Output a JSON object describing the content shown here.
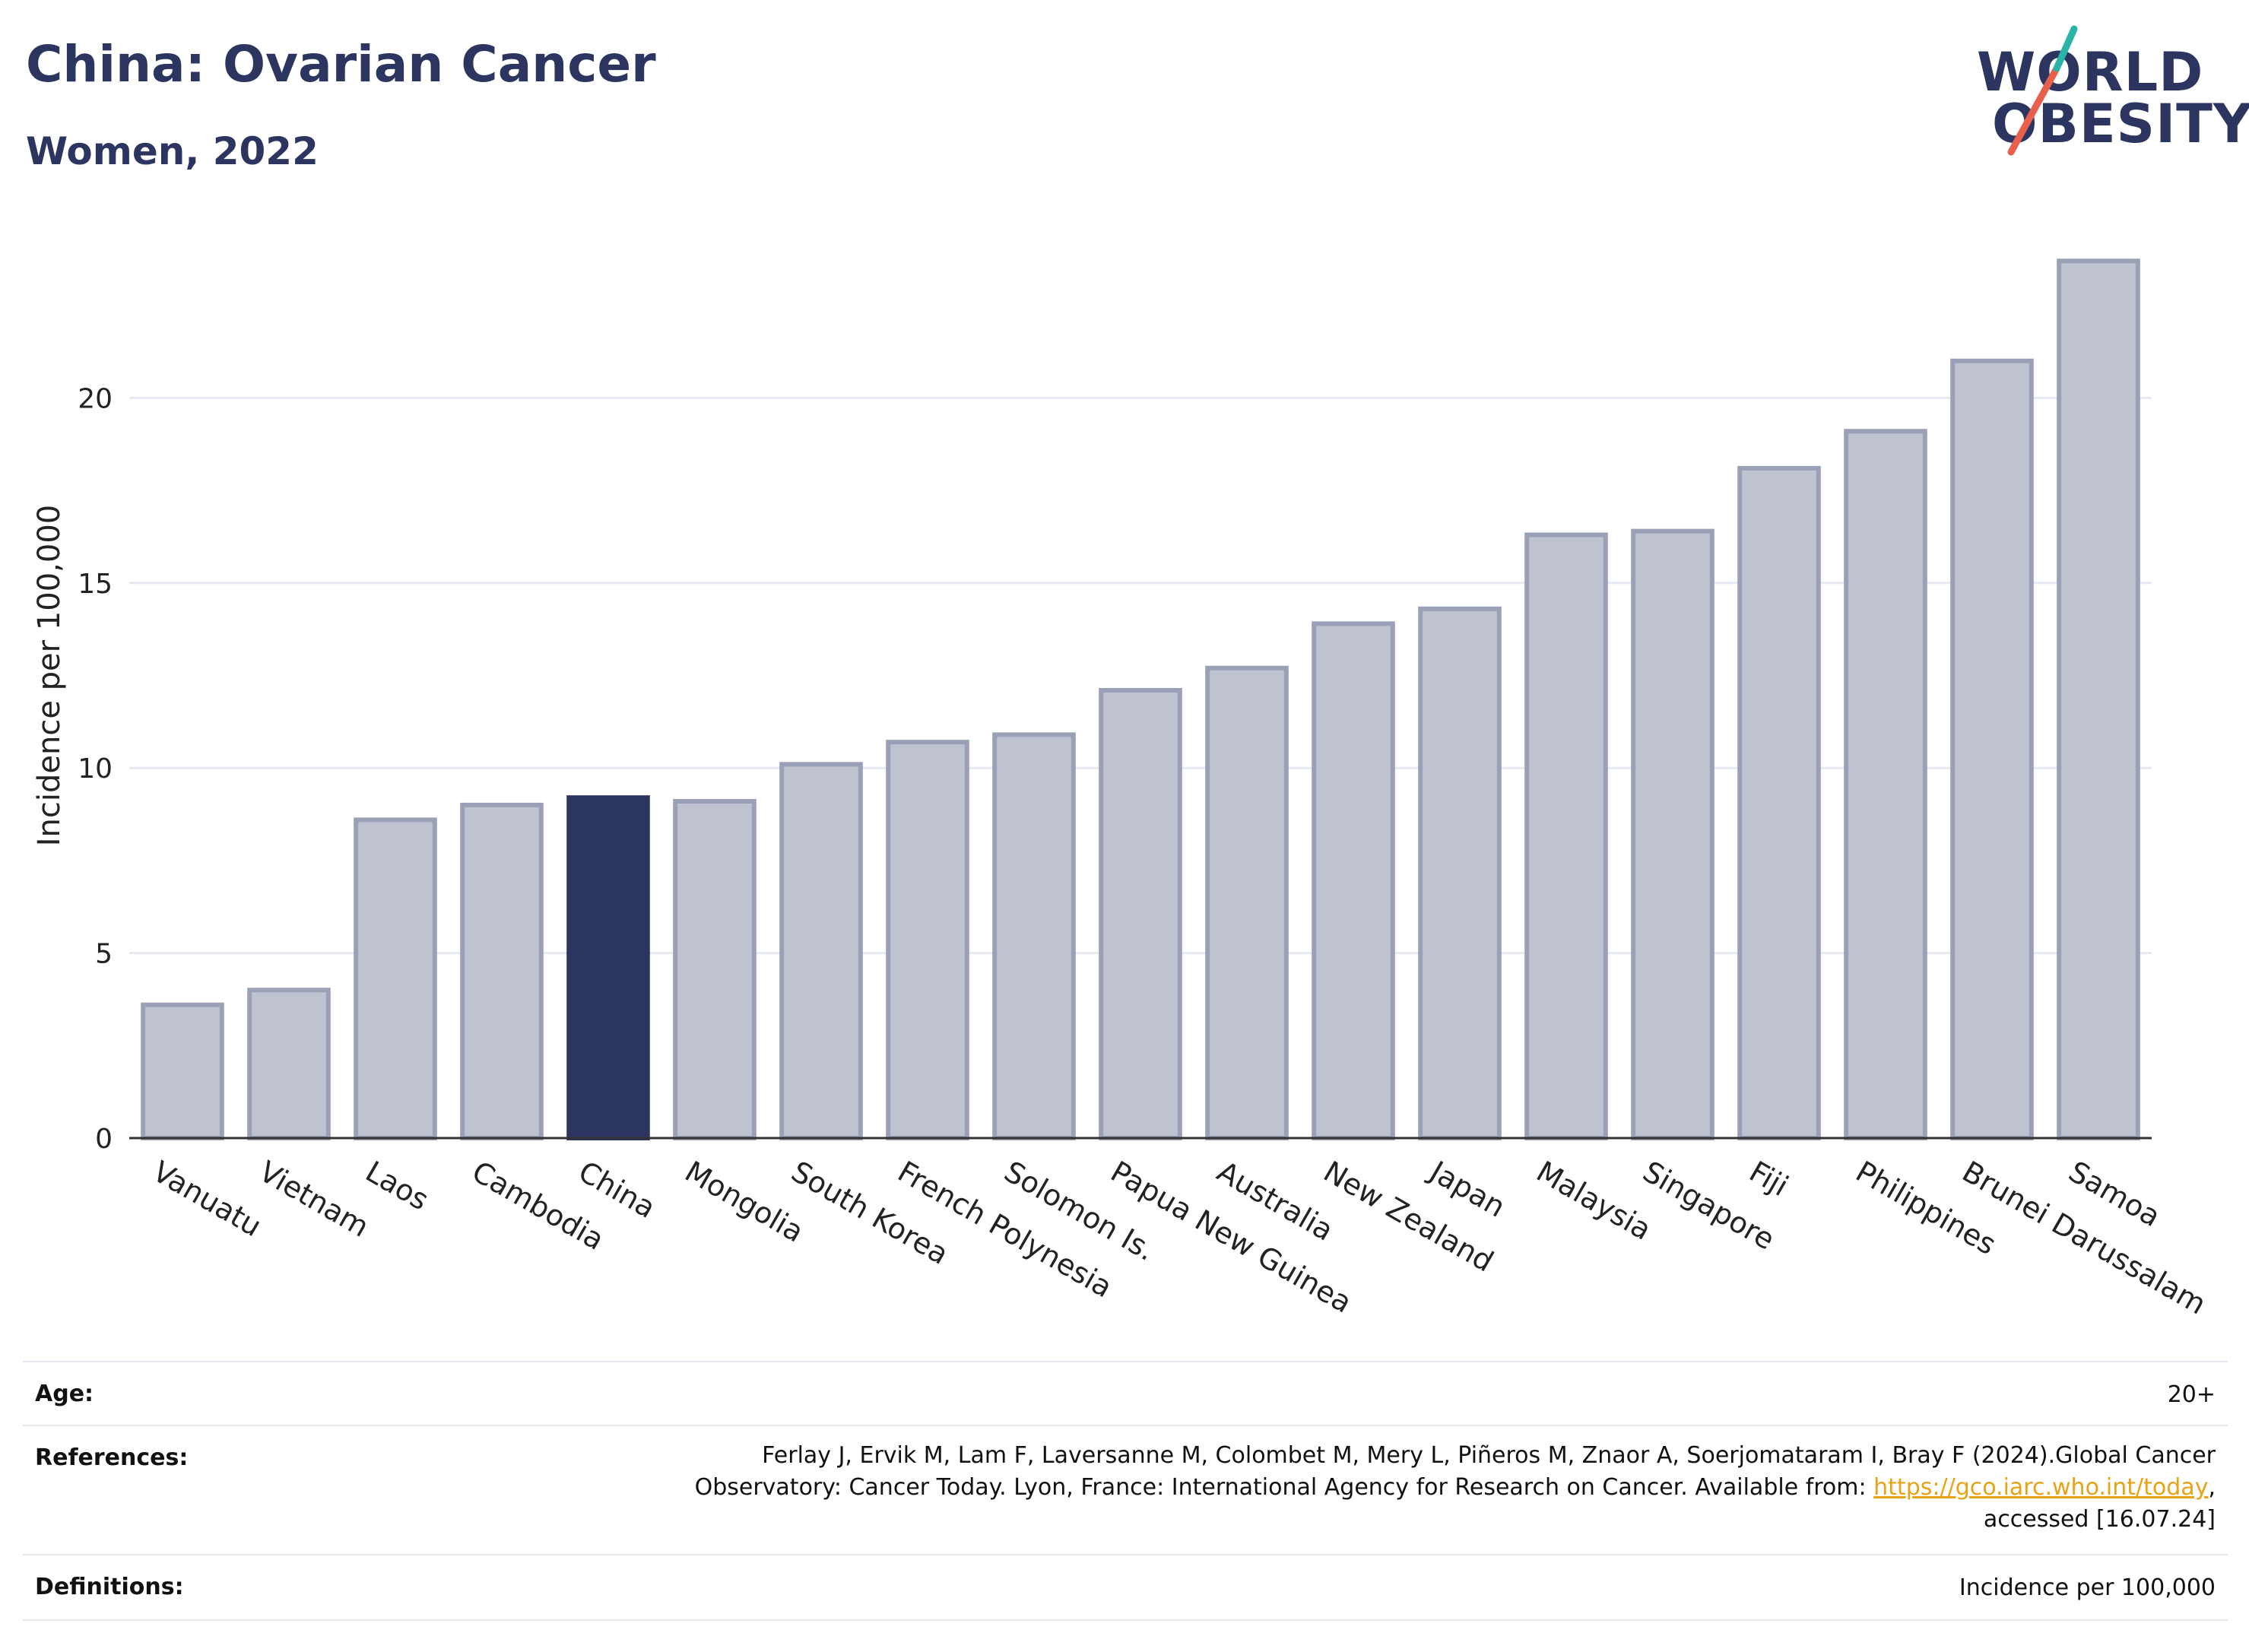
{
  "header": {
    "title": "China: Ovarian Cancer",
    "subtitle": "Women, 2022"
  },
  "logo": {
    "line1": "WORLD",
    "line2": "OBESITY"
  },
  "colors": {
    "highlight": "#2b3560",
    "bar": "#bfc3d0",
    "bar_border": "#9aa0b8",
    "accent_teal": "#2bb3a8",
    "accent_red": "#e8604c"
  },
  "chart_data": {
    "type": "bar",
    "categories": [
      "Vanuatu",
      "Vietnam",
      "Laos",
      "Cambodia",
      "China",
      "Mongolia",
      "South Korea",
      "French Polynesia",
      "Solomon Is.",
      "Papua New Guinea",
      "Australia",
      "New Zealand",
      "Japan",
      "Malaysia",
      "Singapore",
      "Fiji",
      "Philippines",
      "Brunei Darussalam",
      "Samoa"
    ],
    "values": [
      3.6,
      4.0,
      8.6,
      9.0,
      9.2,
      9.1,
      10.1,
      10.7,
      10.9,
      12.1,
      12.7,
      13.9,
      14.3,
      16.3,
      16.4,
      18.1,
      19.1,
      21.0,
      23.7
    ],
    "highlight": "China",
    "ylabel": "Incidence per 100,000",
    "xlabel": "",
    "ylim": [
      0,
      25
    ],
    "yticks": [
      0,
      5,
      10,
      15,
      20
    ],
    "grid": true
  },
  "meta": {
    "age_label": "Age:",
    "age_value": "20+",
    "references_label": "References:",
    "references_line1": "Ferlay J, Ervik M, Lam F, Laversanne M, Colombet M, Mery L, Piñeros M, Znaor A, Soerjomataram I, Bray F (2024).Global Cancer",
    "references_line2_pre": "Observatory: Cancer Today. Lyon, France: International Agency for Research on Cancer. Available from: ",
    "references_link": "https://gco.iarc.who.int/today",
    "references_line2_post": ",",
    "references_line3": "accessed [16.07.24]",
    "definitions_label": "Definitions:",
    "definitions_value": "Incidence per 100,000"
  }
}
